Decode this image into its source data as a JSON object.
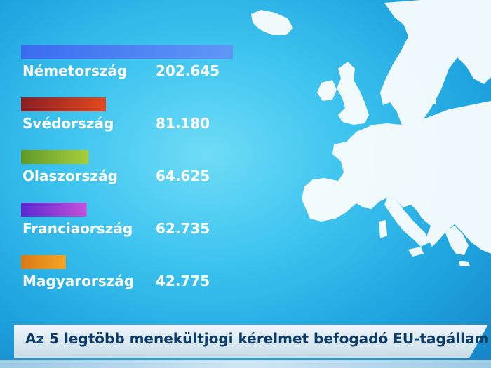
{
  "chart_data": {
    "type": "bar",
    "orientation": "horizontal",
    "title": "Az 5 legtöbb menekültjogi kérelmet befogadó EU-tagállam",
    "categories": [
      "Németország",
      "Svédország",
      "Olaszország",
      "Franciaország",
      "Magyarország"
    ],
    "values": [
      202645,
      81180,
      64625,
      62735,
      42775
    ],
    "value_labels": [
      "202.645",
      "81.180",
      "64.625",
      "62.735",
      "42.775"
    ],
    "bar_colors": [
      [
        "#3a6cf0",
        "#5f97f5"
      ],
      [
        "#8a1e24",
        "#e34a1f"
      ],
      [
        "#5f9a2a",
        "#a8cf3a"
      ],
      [
        "#5a2ad0",
        "#c451d8"
      ],
      [
        "#d87818",
        "#f5a623"
      ]
    ],
    "xlim": [
      0,
      202645
    ],
    "grid": false,
    "legend": "none"
  }
}
